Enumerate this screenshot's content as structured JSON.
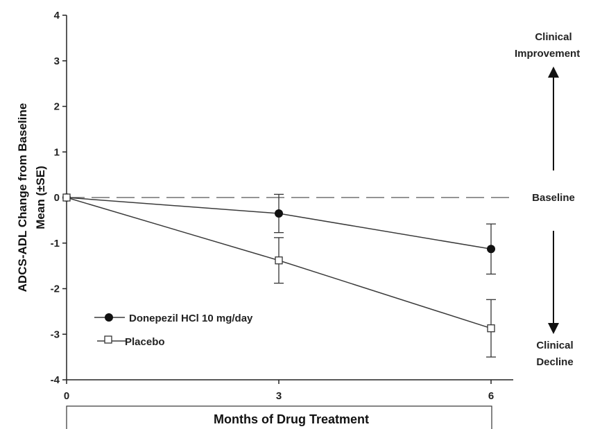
{
  "chart_data": {
    "type": "line",
    "x": [
      0,
      3,
      6
    ],
    "xlim": [
      0,
      6
    ],
    "ylim": [
      -4,
      4
    ],
    "x_ticks": [
      "0",
      "3",
      "6"
    ],
    "y_ticks": [
      "4",
      "3",
      "2",
      "1",
      "0",
      "-1",
      "-2",
      "-3",
      "-4"
    ],
    "xlabel": "Months of Drug Treatment",
    "ylabel_line1": "ADCS-ADL Change from Baseline",
    "ylabel_line2": "Mean (±SE)",
    "grid": false,
    "legend_position": "bottom-left",
    "series": [
      {
        "name": "Donepezil HCl 10 mg/day",
        "marker": "filled-circle",
        "values": [
          0,
          -0.35,
          -1.13
        ],
        "error": [
          0,
          0.42,
          0.55
        ]
      },
      {
        "name": "Placebo",
        "marker": "open-square",
        "values": [
          0,
          -1.38,
          -2.87
        ],
        "error": [
          0,
          0.5,
          0.63
        ]
      }
    ],
    "annotations": {
      "top_line1": "Clinical",
      "top_line2": "Improvement",
      "middle": "Baseline",
      "bottom_line1": "Clinical",
      "bottom_line2": "Decline"
    },
    "baseline_style": "dashed"
  },
  "colors": {
    "line": "#3a3a3a",
    "axis": "#222222",
    "text": "#111111"
  }
}
